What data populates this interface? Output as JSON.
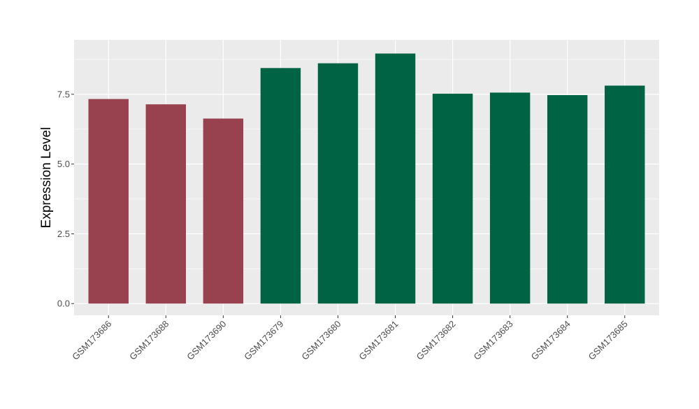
{
  "chart_data": {
    "type": "bar",
    "title": "",
    "xlabel": "",
    "ylabel": "Expression Level",
    "categories": [
      "GSM173686",
      "GSM173688",
      "GSM173690",
      "GSM173679",
      "GSM173680",
      "GSM173681",
      "GSM173682",
      "GSM173683",
      "GSM173684",
      "GSM173685"
    ],
    "values": [
      7.33,
      7.14,
      6.63,
      8.44,
      8.61,
      8.96,
      7.52,
      7.56,
      7.47,
      7.81
    ],
    "groups": [
      "a",
      "a",
      "a",
      "b",
      "b",
      "b",
      "b",
      "b",
      "b",
      "b"
    ],
    "group_colors": {
      "a": "#98414f",
      "b": "#006444"
    },
    "ylim": [
      -0.42,
      9.45
    ],
    "yticks": [
      0.0,
      2.5,
      5.0,
      7.5
    ],
    "ytick_labels": [
      "0.0",
      "2.5",
      "5.0",
      "7.5"
    ],
    "grid": true,
    "legend": "none",
    "panel_color": "#ebebeb",
    "grid_color": "#ffffff"
  }
}
